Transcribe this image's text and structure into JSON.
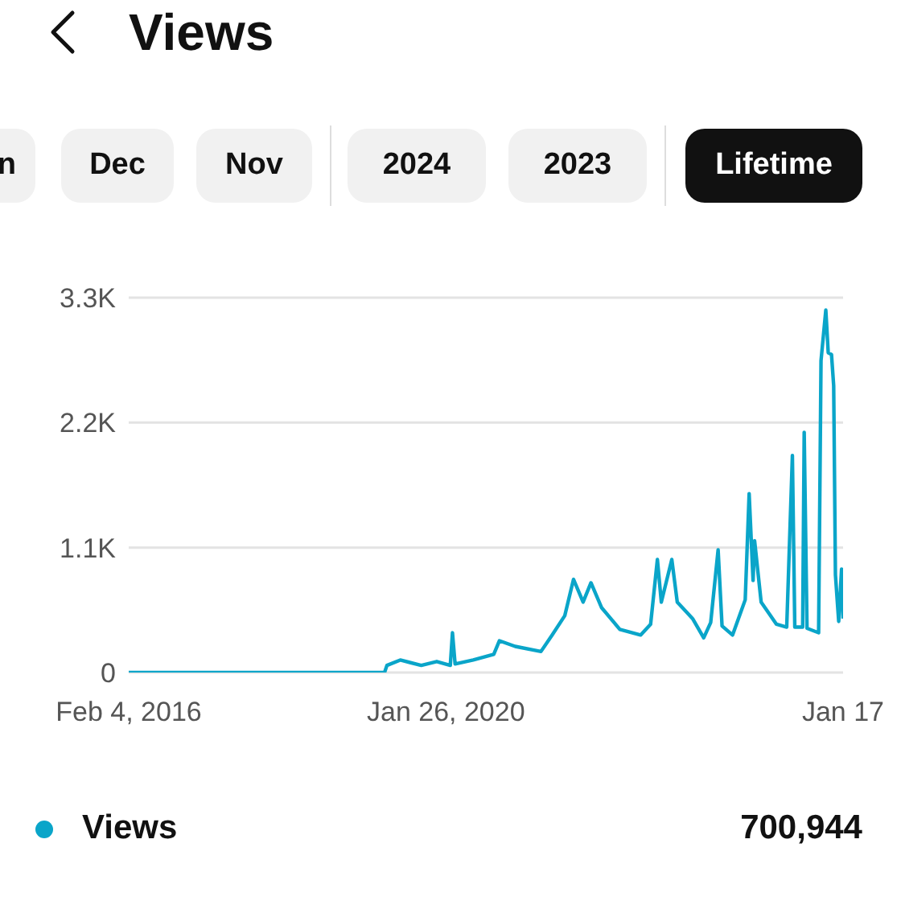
{
  "chart_data": {
    "type": "line",
    "title": "Views",
    "annotations": [
      "n",
      "Dec",
      "Nov",
      "2024",
      "2023",
      "Lifetime",
      "700,944"
    ],
    "x": [
      "2016-02-04",
      "2019-04-20",
      "2019-05-01",
      "2019-07-01",
      "2019-10-05",
      "2019-12-15",
      "2020-02-15",
      "2020-02-25",
      "2020-03-08",
      "2020-05-30",
      "2020-09-01",
      "2020-09-27",
      "2020-12-08",
      "2021-04-05",
      "2021-05-26",
      "2021-07-23",
      "2021-09-01",
      "2021-10-15",
      "2021-11-20",
      "2022-01-08",
      "2022-04-01",
      "2022-07-05",
      "2022-08-20",
      "2022-09-20",
      "2022-10-08",
      "2022-11-25",
      "2022-12-20",
      "2023-02-28",
      "2023-04-20",
      "2023-05-22",
      "2023-06-25",
      "2023-07-13",
      "2023-08-30",
      "2023-10-27",
      "2023-11-14",
      "2023-12-02",
      "2023-12-09",
      "2024-01-08",
      "2024-03-18",
      "2024-05-04",
      "2024-05-30",
      "2024-06-10",
      "2024-07-16",
      "2024-07-23",
      "2024-08-05",
      "2024-09-27",
      "2024-10-08",
      "2024-10-30",
      "2024-11-10",
      "2024-11-25",
      "2024-12-05",
      "2024-12-13",
      "2024-12-28",
      "2025-01-10",
      "2025-01-17"
    ],
    "series": [
      {
        "name": "Views",
        "color": "#0aa5c9",
        "values": [
          0,
          0,
          63,
          110,
          63,
          97,
          63,
          350,
          75,
          110,
          160,
          280,
          230,
          185,
          330,
          500,
          820,
          620,
          790,
          570,
          380,
          330,
          425,
          995,
          620,
          995,
          620,
          475,
          305,
          440,
          1080,
          410,
          330,
          640,
          1575,
          810,
          1160,
          620,
          425,
          400,
          1910,
          400,
          400,
          2115,
          390,
          350,
          2745,
          3190,
          2815,
          2800,
          2525,
          860,
          450,
          910,
          475
        ]
      }
    ],
    "xlim": [
      "2016-02-04",
      "2025-01-17"
    ],
    "xticks": [
      {
        "value": "2016-02-04",
        "label": "Feb 4, 2016"
      },
      {
        "value": "2020-01-26",
        "label": "Jan 26, 2020"
      },
      {
        "value": "2025-01-17",
        "label": "Jan 17"
      }
    ],
    "ylim": [
      0,
      3300
    ],
    "yticks": [
      0,
      {
        "value": 1100,
        "label": "1.1K"
      },
      {
        "value": 2200,
        "label": "2.2K"
      },
      {
        "value": 3300,
        "label": "3.3K"
      }
    ],
    "grid": "y",
    "legend": "bottom",
    "marker": "none",
    "line_style": "solid"
  }
}
